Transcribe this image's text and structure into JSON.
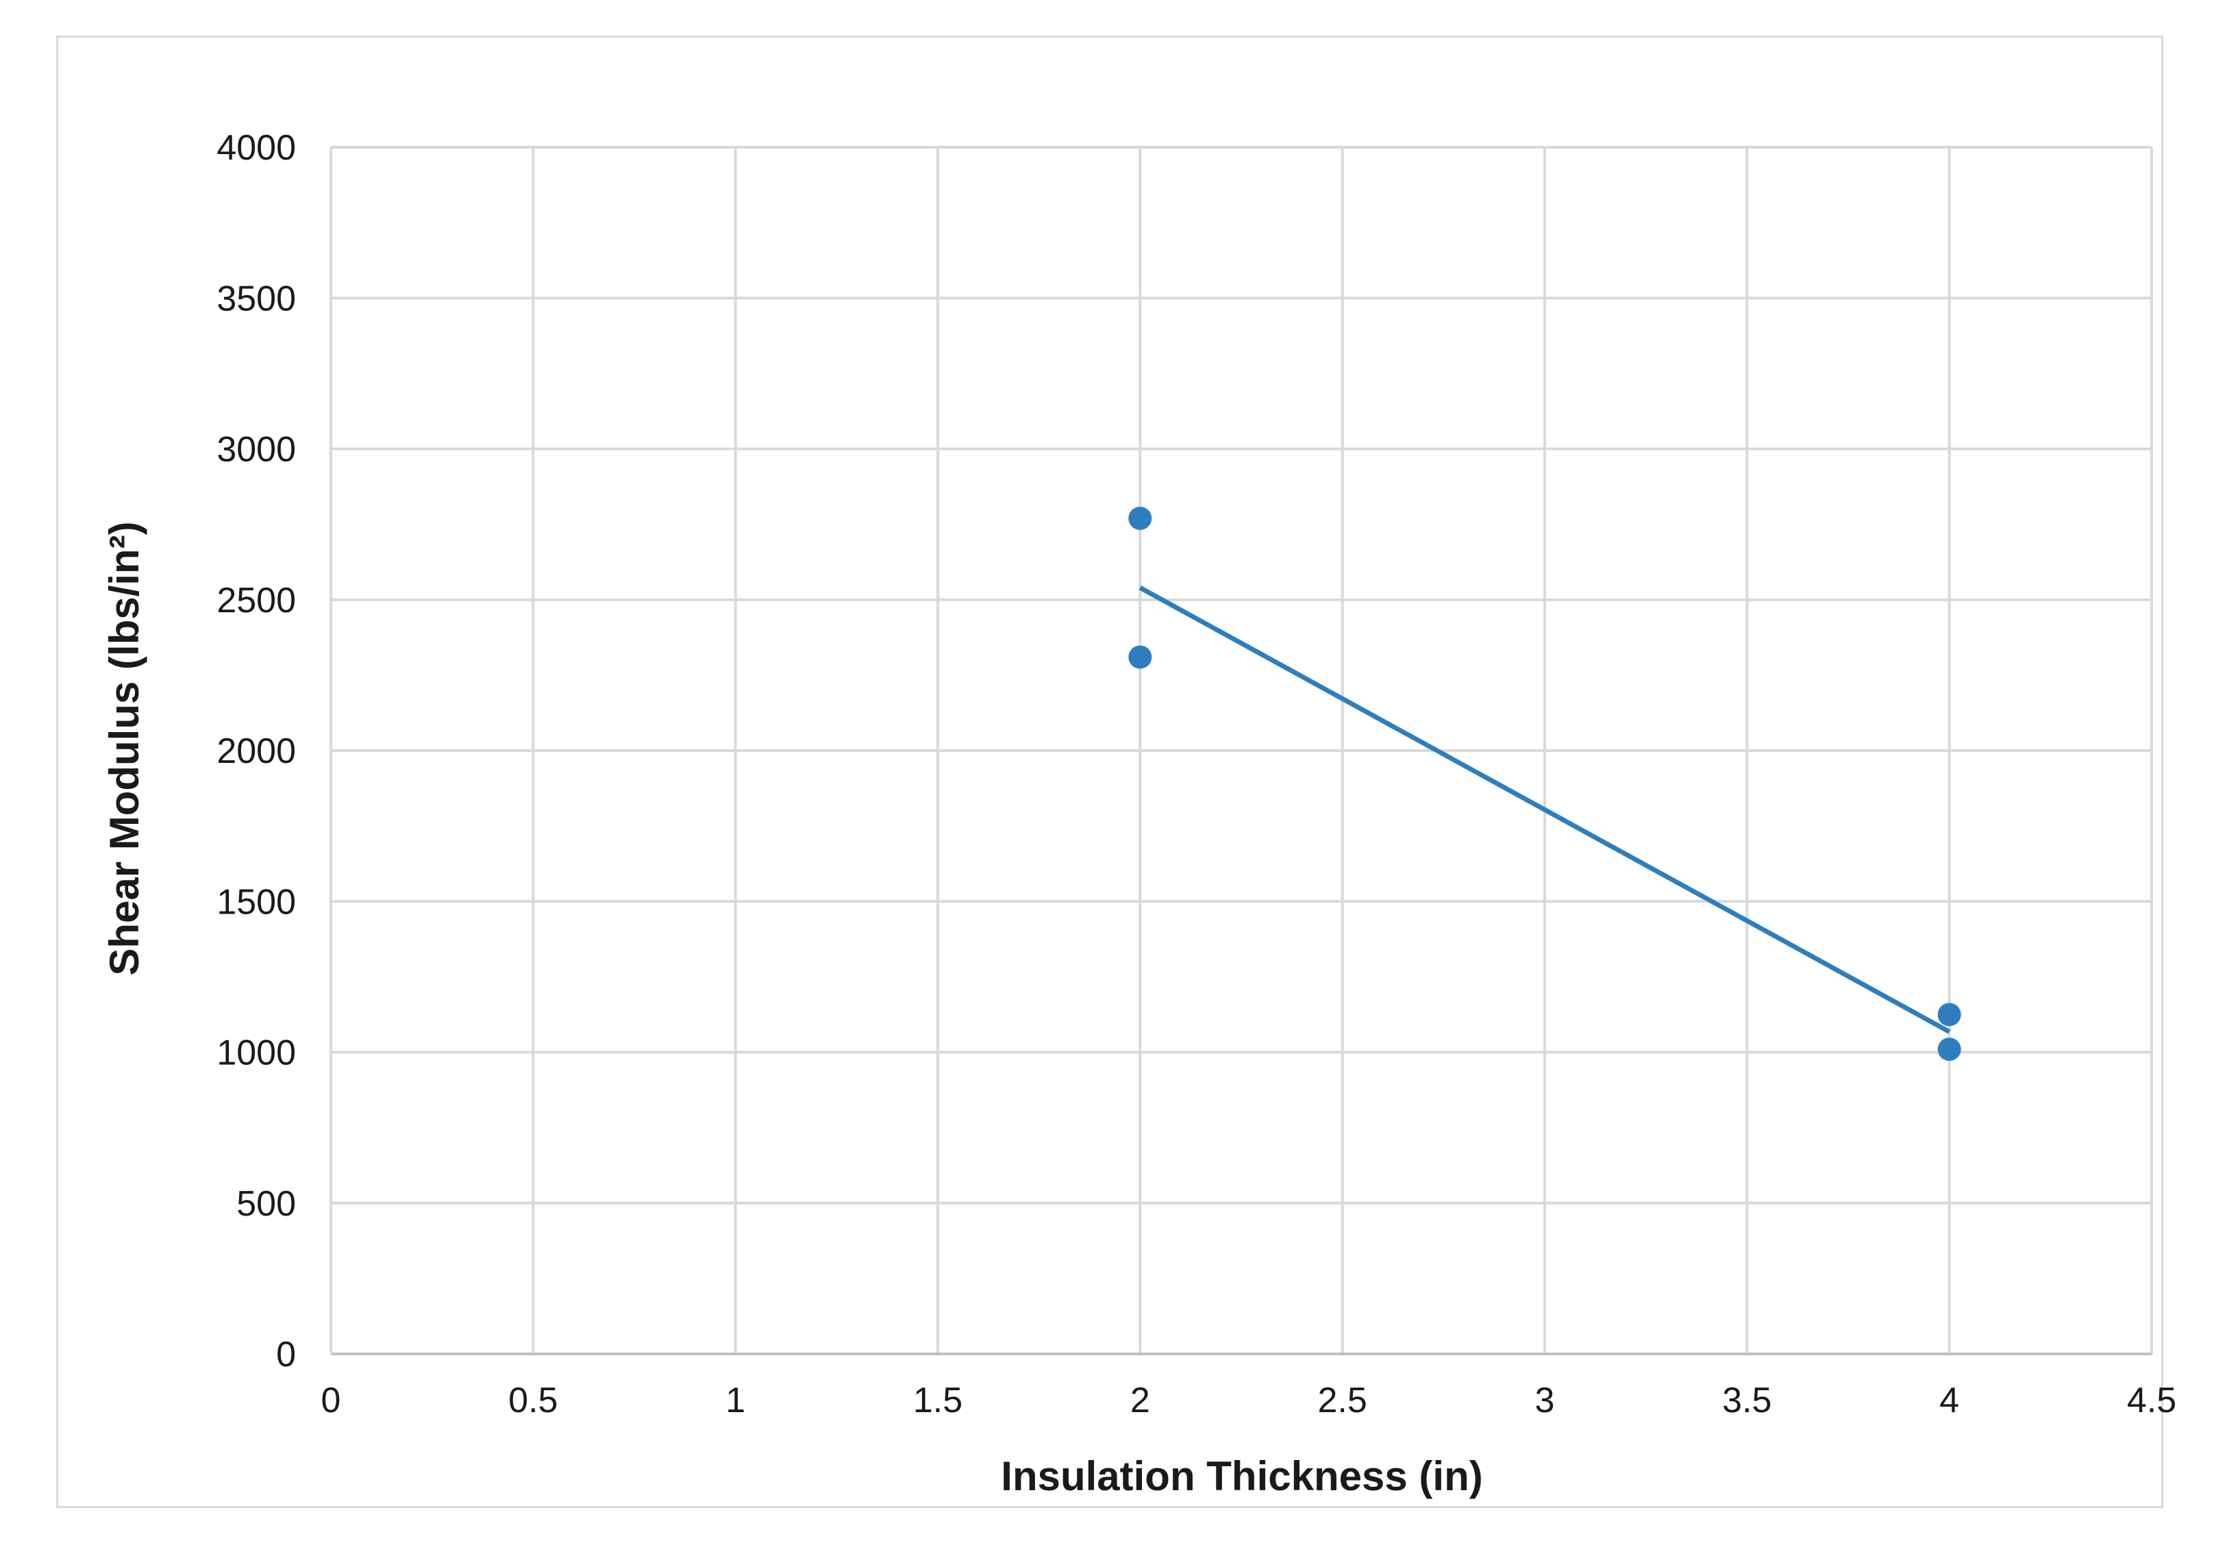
{
  "chart_data": {
    "type": "scatter",
    "title": "",
    "xlabel": "Insulation Thickness (in)",
    "ylabel": "Shear Modulus (lbs/in²)",
    "xlim": [
      0,
      4.5
    ],
    "ylim": [
      0,
      4000
    ],
    "x_ticks": [
      "0",
      "0.5",
      "1",
      "1.5",
      "2",
      "2.5",
      "3",
      "3.5",
      "4",
      "4.5"
    ],
    "x_tick_values": [
      0,
      0.5,
      1,
      1.5,
      2,
      2.5,
      3,
      3.5,
      4,
      4.5
    ],
    "y_ticks": [
      "0",
      "500",
      "1000",
      "1500",
      "2000",
      "2500",
      "3000",
      "3500",
      "4000"
    ],
    "y_tick_values": [
      0,
      500,
      1000,
      1500,
      2000,
      2500,
      3000,
      3500,
      4000
    ],
    "grid": true,
    "legend": "none",
    "series": [
      {
        "points": [
          {
            "x": 2,
            "y": 2770
          },
          {
            "x": 2,
            "y": 2310
          },
          {
            "x": 4,
            "y": 1125
          },
          {
            "x": 4,
            "y": 1010
          }
        ],
        "color": "#2e7ebf"
      }
    ],
    "trendline": {
      "type": "linear",
      "x": [
        2,
        4
      ],
      "y": [
        2540,
        1068
      ],
      "color": "#2e7ebf"
    },
    "colors": {
      "grid": "#d9d9d9",
      "axis": "#bfbfbf",
      "series": "#2e7ebf"
    }
  }
}
